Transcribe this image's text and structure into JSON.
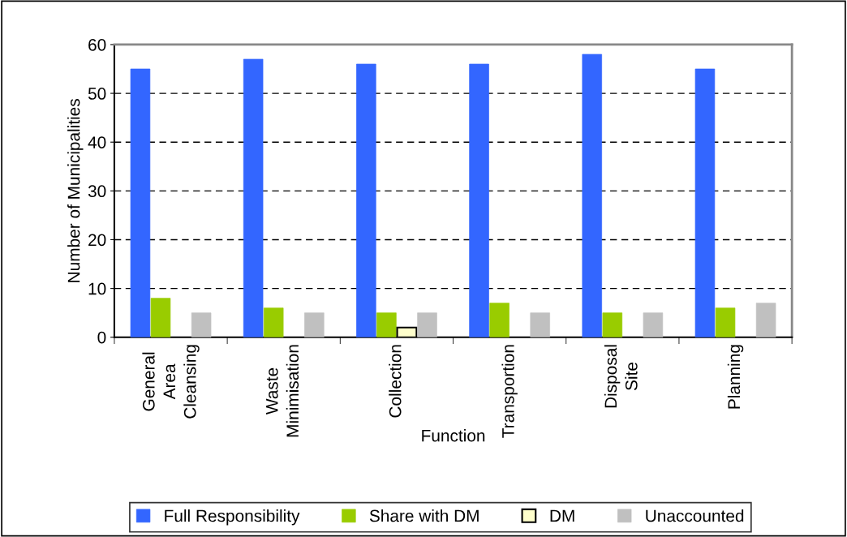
{
  "chart_data": {
    "type": "bar",
    "xlabel": "Function",
    "ylabel": "Number of Municipalities",
    "categories": [
      "General\nArea\nCleansing",
      "Waste\nMinimisation",
      "Collection",
      "Transportion",
      "Disposal\nSite",
      "Planning"
    ],
    "series": [
      {
        "name": "Full Responsibility",
        "color": "#3366ff",
        "values": [
          55,
          57,
          56,
          56,
          58,
          55
        ]
      },
      {
        "name": "Share with DM",
        "color": "#99cc00",
        "values": [
          8,
          6,
          5,
          7,
          5,
          6
        ]
      },
      {
        "name": "DM",
        "color": "#ffffcc",
        "values": [
          null,
          null,
          2,
          null,
          null,
          null
        ]
      },
      {
        "name": "Unaccounted",
        "color": "#c0c0c0",
        "values": [
          5,
          5,
          5,
          5,
          5,
          7
        ]
      }
    ],
    "ylim": [
      0,
      60
    ],
    "yticks": [
      0,
      10,
      20,
      30,
      40,
      50,
      60
    ],
    "grid": "y",
    "legend": "bottom"
  }
}
